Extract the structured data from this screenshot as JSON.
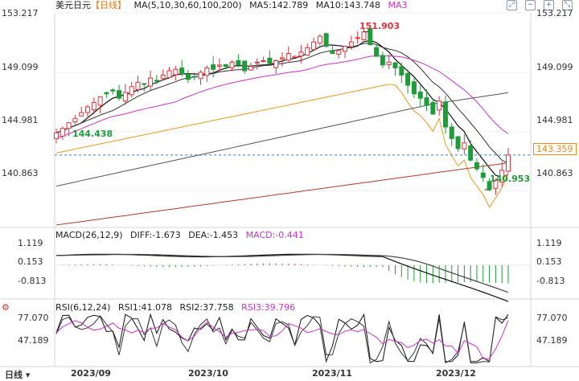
{
  "header": {
    "main": {
      "symbol": "美元日元",
      "period": "【日线】",
      "ma_label": "MA(5,10,30,60,100,200)",
      "ma5": "MA5:142.789",
      "ma10": "MA10:143.748",
      "ma3": "MA3"
    },
    "macd": {
      "label": "MACD(26,12,9)",
      "diff": "DIFF:-1.673",
      "dea": "DEA:-1.453",
      "macd": "MACD:-0.441"
    },
    "rsi": {
      "label": "RSI(6,12,24)",
      "rsi1": "RSI1:41.078",
      "rsi2": "RSI2:37.758",
      "rsi3": "RSI3:39.796"
    },
    "period_button": "日线"
  },
  "toolbar": {
    "icons": [
      "expand-icon",
      "minus-icon",
      "plus-icon",
      "collapse-icon"
    ]
  },
  "price_axis": {
    "labels": [
      "153.217",
      "149.099",
      "144.981",
      "140.863"
    ]
  },
  "macd_axis": {
    "labels": [
      "1.119",
      "0.153",
      "-0.813"
    ]
  },
  "rsi_axis": {
    "labels": [
      "77.070",
      "47.189"
    ]
  },
  "x_axis": {
    "labels": [
      "2023/09",
      "2023/10",
      "2023/11",
      "2023/12"
    ]
  },
  "annotations": {
    "high": "151.903",
    "low": "140.953",
    "start_low": "144.438",
    "current": "143.359"
  },
  "colors": {
    "up": "#e0323c",
    "down": "#1f9b3a",
    "ma5": "#111111",
    "ma10": "#333333",
    "ma30": "#cc33cc",
    "ma60": "#e89a1c",
    "ma100": "#555555",
    "ma200": "#b23a2a",
    "current_line": "#3a7fbf",
    "current_label": "#f08a1c",
    "dif": "#111111",
    "dea": "#444444",
    "rsi1": "#111111",
    "rsi2": "#333333",
    "rsi3": "#cc33cc"
  },
  "chart_data": {
    "type": "candlestick",
    "x": [
      "2023/09",
      "2023/10",
      "2023/11",
      "2023/12"
    ],
    "ylim": [
      138.5,
      153.217
    ],
    "price_series": [
      144.9,
      145.2,
      145.6,
      145.9,
      146.3,
      146.7,
      147.0,
      147.4,
      147.6,
      147.8,
      147.3,
      147.7,
      148.1,
      148.4,
      148.3,
      148.7,
      148.5,
      148.9,
      149.2,
      149.3,
      149.0,
      148.6,
      148.8,
      149.1,
      149.4,
      149.3,
      149.6,
      149.5,
      149.8,
      149.6,
      149.2,
      149.5,
      149.8,
      149.9,
      149.7,
      149.9,
      150.1,
      150.4,
      150.2,
      150.5,
      150.8,
      151.2,
      151.6,
      150.9,
      150.4,
      150.6,
      150.9,
      151.2,
      151.5,
      151.9,
      151.0,
      150.2,
      149.6,
      149.8,
      149.4,
      148.9,
      148.2,
      147.6,
      147.3,
      146.8,
      146.2,
      147.1,
      145.3,
      144.5,
      143.8,
      144.2,
      143.0,
      142.4,
      141.8,
      140.95,
      141.6,
      142.3,
      143.36
    ],
    "highlights": {
      "high": 151.903,
      "low": 140.953,
      "first_low": 144.438,
      "last": 143.359
    },
    "macd": {
      "dif": -1.673,
      "dea": -1.453,
      "macd": -0.441,
      "ylim": [
        -1.5,
        1.119
      ]
    },
    "rsi": {
      "rsi1": 41.078,
      "rsi2": 37.758,
      "rsi3": 39.796,
      "ylim": [
        20,
        77.07
      ]
    }
  }
}
